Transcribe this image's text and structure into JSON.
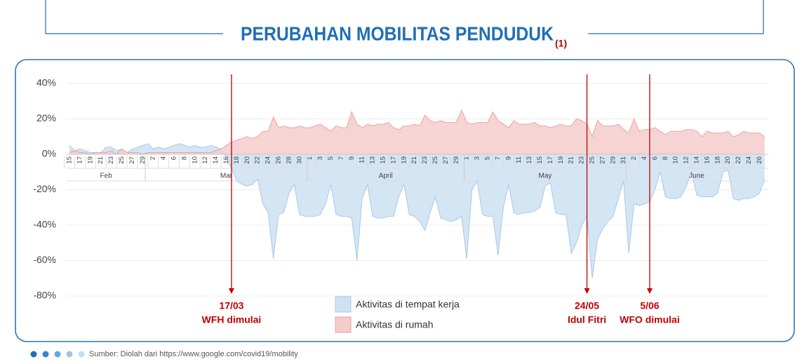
{
  "header": {
    "title": "PERUBAHAN MOBILITAS PENDUDUK",
    "title_note": "(1)"
  },
  "chart_data": {
    "type": "area",
    "categories": [
      "15",
      null,
      "17",
      null,
      "19",
      null,
      "21",
      null,
      "23",
      null,
      "25",
      null,
      "27",
      null,
      "29",
      null,
      "2",
      null,
      "4",
      null,
      "6",
      null,
      "8",
      null,
      "10",
      null,
      "12",
      null,
      "14",
      null,
      "16",
      null,
      "18",
      null,
      "20",
      null,
      "22",
      null,
      "24",
      null,
      "26",
      null,
      "28",
      null,
      "30",
      null,
      "1",
      null,
      "3",
      null,
      "5",
      null,
      "7",
      null,
      "9",
      null,
      "11",
      null,
      "13",
      null,
      "15",
      null,
      "17",
      null,
      "19",
      null,
      "21",
      null,
      "23",
      null,
      "25",
      null,
      "27",
      null,
      "29",
      null,
      "1",
      null,
      "3",
      null,
      "5",
      null,
      "7",
      null,
      "9",
      null,
      "11",
      null,
      "13",
      null,
      "15",
      null,
      "17",
      null,
      "19",
      null,
      "21",
      null,
      "23",
      null,
      "25",
      null,
      "27",
      null,
      "29",
      null,
      "31",
      null,
      "2",
      null,
      "4",
      null,
      "6",
      null,
      "8",
      null,
      "10",
      null,
      "12",
      null,
      "14",
      null,
      "16",
      null,
      "18",
      null,
      "20",
      null,
      "22",
      null,
      "24",
      null,
      "26",
      null
    ],
    "month_labels": [
      "Feb",
      "Mar",
      "April",
      "May",
      "June"
    ],
    "series": [
      {
        "name": "Aktivitas di tempat kerja",
        "color": "#cfe2f3",
        "line_color": "#a9c9e8",
        "values": [
          5,
          2,
          3,
          2,
          1,
          1,
          1,
          4,
          4,
          2,
          3,
          1,
          3,
          4,
          5,
          6,
          3,
          4,
          3,
          4,
          5,
          6,
          5,
          4,
          5,
          4,
          4,
          5,
          4,
          3,
          -2,
          -8,
          -15,
          -17,
          -18,
          -17,
          -14,
          -28,
          -33,
          -59,
          -34,
          -33,
          -22,
          -17,
          -34,
          -35,
          -35,
          -35,
          -34,
          -28,
          -17,
          -34,
          -35,
          -35,
          -36,
          -60,
          -25,
          -17,
          -35,
          -36,
          -36,
          -35,
          -35,
          -24,
          -17,
          -34,
          -35,
          -38,
          -43,
          -33,
          -24,
          -36,
          -37,
          -38,
          -37,
          -35,
          -59,
          -20,
          -15,
          -34,
          -35,
          -35,
          -57,
          -30,
          -17,
          -33,
          -34,
          -33,
          -33,
          -32,
          -30,
          -18,
          -16,
          -33,
          -34,
          -34,
          -56,
          -50,
          -40,
          -35,
          -70,
          -48,
          -42,
          -38,
          -35,
          -25,
          -15,
          -56,
          -28,
          -29,
          -28,
          -27,
          -20,
          -10,
          -24,
          -25,
          -25,
          -24,
          -18,
          -10,
          -23,
          -24,
          -24,
          -24,
          -22,
          -10,
          -9,
          -25,
          -26,
          -25,
          -25,
          -24,
          -22,
          -14
        ]
      },
      {
        "name": "Aktivitas di rumah",
        "color": "#f4cccc",
        "line_color": "#eaa3a3",
        "values": [
          1,
          2,
          1,
          1,
          0,
          1,
          1,
          1,
          2,
          0,
          3,
          1,
          1,
          1,
          0,
          1,
          1,
          1,
          1,
          1,
          1,
          1,
          1,
          1,
          1,
          1,
          1,
          1,
          2,
          3,
          5,
          7,
          8,
          9,
          10,
          9,
          10,
          13,
          13,
          21,
          15,
          16,
          15,
          15,
          16,
          15,
          15,
          16,
          17,
          15,
          13,
          16,
          15,
          15,
          24,
          17,
          15,
          17,
          16,
          17,
          17,
          18,
          15,
          14,
          16,
          16,
          17,
          16,
          22,
          19,
          18,
          19,
          18,
          18,
          18,
          25,
          18,
          17,
          18,
          18,
          18,
          24,
          19,
          17,
          15,
          19,
          17,
          17,
          17,
          18,
          16,
          16,
          15,
          16,
          17,
          16,
          16,
          20,
          19,
          17,
          10,
          19,
          16,
          16,
          16,
          17,
          14,
          12,
          20,
          13,
          14,
          14,
          15,
          13,
          11,
          13,
          13,
          13,
          14,
          14,
          13,
          10,
          13,
          12,
          12,
          12,
          13,
          10,
          11,
          13,
          12,
          12,
          12,
          10
        ]
      }
    ],
    "ylim": [
      -80,
      40
    ],
    "yticks": [
      {
        "value": 40,
        "label": "40%"
      },
      {
        "value": 20,
        "label": "20%"
      },
      {
        "value": 0,
        "label": "0%"
      },
      {
        "value": -20,
        "label": "-20%"
      },
      {
        "value": -40,
        "label": "-40%"
      },
      {
        "value": -60,
        "label": "-60%"
      },
      {
        "value": -80,
        "label": "-80%"
      }
    ],
    "grid": true,
    "annotations": [
      {
        "index": 31,
        "date": "17/03",
        "text": "WFH dimulai",
        "color": "#c00000"
      },
      {
        "index": 99,
        "date": "24/05",
        "text": "Idul Fitri",
        "color": "#c00000"
      },
      {
        "index": 111,
        "date": "5/06",
        "text": "WFO dimulai",
        "color": "#c00000"
      }
    ]
  },
  "footer": {
    "source": "Sumber: Diolah dari https://www.google.com/covid19/mobility"
  }
}
